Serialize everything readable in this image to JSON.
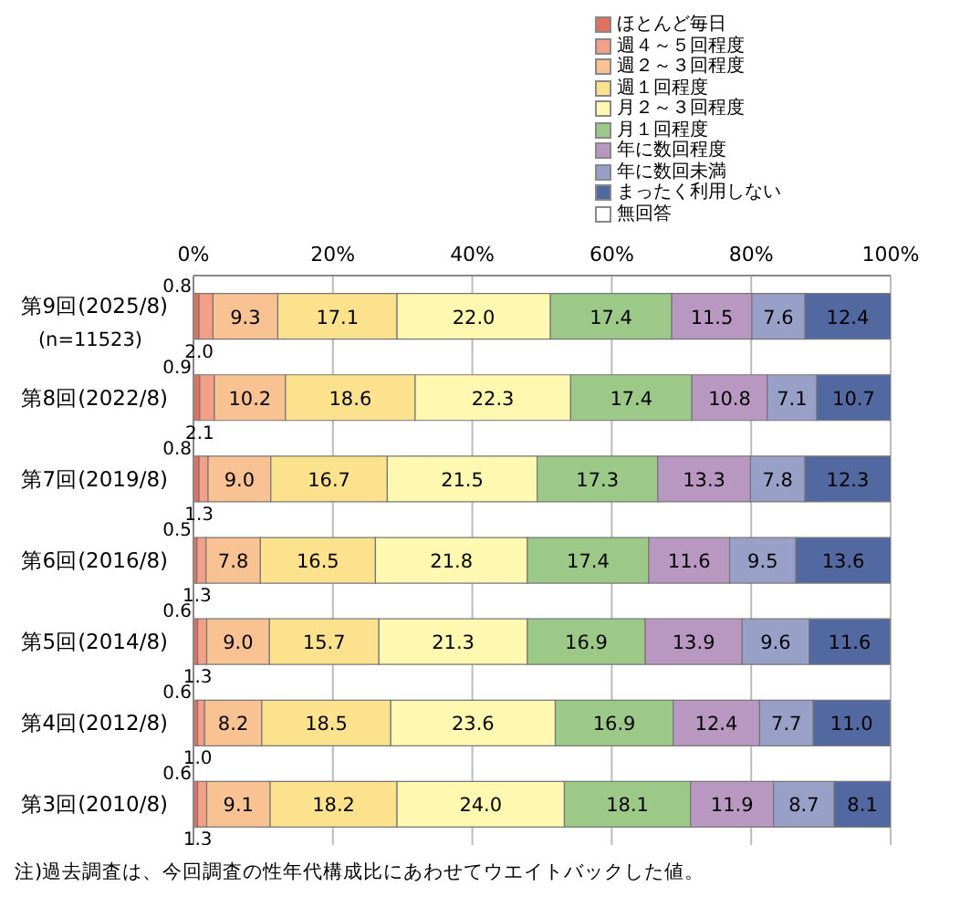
{
  "chart_data": {
    "type": "bar",
    "orientation": "horizontal",
    "stacked": true,
    "grid": "x",
    "legend": "top right",
    "categories": [
      "第9回(2025/8)\n(n=11523)",
      "第8回(2022/8)",
      "第7回(2019/8)",
      "第6回(2016/8)",
      "第5回(2014/8)",
      "第4回(2012/8)",
      "第3回(2010/8)"
    ],
    "xlim": [
      0,
      100
    ],
    "xticks": [
      {
        "value": 0,
        "label": "0%"
      },
      {
        "value": 20,
        "label": "20%"
      },
      {
        "value": 40,
        "label": "40%"
      },
      {
        "value": 60,
        "label": "60%"
      },
      {
        "value": 80,
        "label": "80%"
      },
      {
        "value": 100,
        "label": "100%"
      }
    ],
    "series": [
      {
        "name": "ほとんど毎日",
        "color": "#e07060",
        "values": [
          0.8,
          0.9,
          0.8,
          0.5,
          0.6,
          0.6,
          0.6
        ],
        "value_labels": [
          "0.8",
          "0.9",
          "0.8",
          "0.5",
          "0.6",
          "0.6",
          "0.6"
        ]
      },
      {
        "name": "週４～５回程度",
        "color": "#f4a088",
        "values": [
          2.0,
          2.1,
          1.3,
          1.3,
          1.3,
          1.0,
          1.3
        ],
        "value_labels": [
          "2.0",
          "2.1",
          "1.3",
          "1.3",
          "1.3",
          "1.0",
          "1.3"
        ]
      },
      {
        "name": "週２～３回程度",
        "color": "#f9c292",
        "values": [
          9.3,
          10.2,
          9.0,
          7.8,
          9.0,
          8.2,
          9.1
        ],
        "value_labels": [
          "9.3",
          "10.2",
          "9.0",
          "7.8",
          "9.0",
          "8.2",
          "9.1"
        ]
      },
      {
        "name": "週１回程度",
        "color": "#fde28e",
        "values": [
          17.1,
          18.6,
          16.7,
          16.5,
          15.7,
          18.5,
          18.2
        ],
        "value_labels": [
          "17.1",
          "18.6",
          "16.7",
          "16.5",
          "15.7",
          "18.5",
          "18.2"
        ]
      },
      {
        "name": "月２～３回程度",
        "color": "#fff8b0",
        "values": [
          22.0,
          22.3,
          21.5,
          21.8,
          21.3,
          23.6,
          24.0
        ],
        "value_labels": [
          "22.0",
          "22.3",
          "21.5",
          "21.8",
          "21.3",
          "23.6",
          "24.0"
        ]
      },
      {
        "name": "月１回程度",
        "color": "#9cc888",
        "values": [
          17.4,
          17.4,
          17.3,
          17.4,
          16.9,
          16.9,
          18.1
        ],
        "value_labels": [
          "17.4",
          "17.4",
          "17.3",
          "17.4",
          "16.9",
          "16.9",
          "18.1"
        ]
      },
      {
        "name": "年に数回程度",
        "color": "#b898c0",
        "values": [
          11.5,
          10.8,
          13.3,
          11.6,
          13.9,
          12.4,
          11.9
        ],
        "value_labels": [
          "11.5",
          "10.8",
          "13.3",
          "11.6",
          "13.9",
          "12.4",
          "11.9"
        ]
      },
      {
        "name": "年に数回未満",
        "color": "#98a0c8",
        "values": [
          7.6,
          7.1,
          7.8,
          9.5,
          9.6,
          7.7,
          8.7
        ],
        "value_labels": [
          "7.6",
          "7.1",
          "7.8",
          "9.5",
          "9.6",
          "7.7",
          "8.7"
        ]
      },
      {
        "name": "まったく利用しない",
        "color": "#5268a0",
        "values": [
          12.4,
          10.7,
          12.3,
          13.6,
          11.6,
          11.0,
          8.1
        ],
        "value_labels": [
          "12.4",
          "10.7",
          "12.3",
          "13.6",
          "11.6",
          "11.0",
          "8.1"
        ]
      },
      {
        "name": "無回答",
        "color": "#ffffff",
        "values": [
          null,
          null,
          null,
          null,
          null,
          null,
          null
        ]
      }
    ],
    "annotations": [
      "注)過去調査は、今回調査の性年代構成比にあわせてウエイトバックした値。"
    ]
  }
}
